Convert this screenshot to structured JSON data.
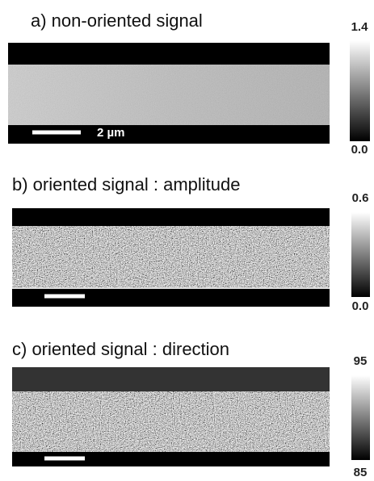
{
  "panels": [
    {
      "title": "a) non-oriented signal",
      "colorbar_max": "1.4",
      "colorbar_min": "0.0",
      "scale_bar_label": "2 µm"
    },
    {
      "title": "b) oriented signal : amplitude",
      "colorbar_max": "0.6",
      "colorbar_min": "0.0"
    },
    {
      "title": "c) oriented signal : direction",
      "colorbar_max": "95",
      "colorbar_min": "85"
    }
  ]
}
